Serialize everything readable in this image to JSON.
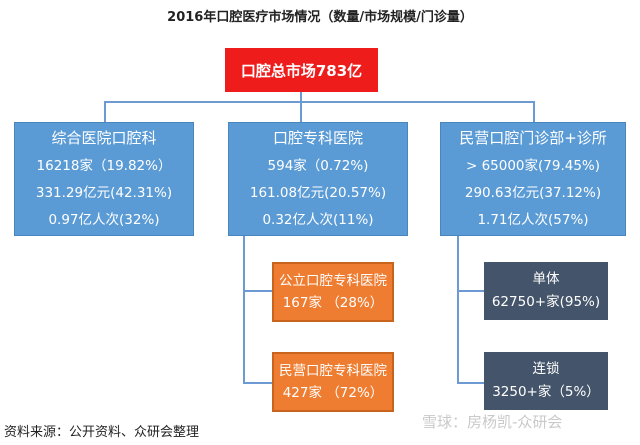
{
  "title": "2016年口腔医疗市场情况（数量/市场规模/门诊量）",
  "root": {
    "label": "口腔总市场783亿"
  },
  "categories": [
    {
      "header": "综合医院口腔科",
      "lines": [
        "16218家（19.82%）",
        "331.29亿元(42.31%)",
        "0.97亿人次(32%)"
      ]
    },
    {
      "header": "口腔专科医院",
      "lines": [
        "594家（0.72%)",
        "161.08亿元(20.57%)",
        "0.32亿人次(11%)"
      ]
    },
    {
      "header": "民营口腔门诊部+诊所",
      "lines": [
        "> 65000家(79.45%)",
        "290.63亿元(37.12%)",
        "1.71亿人次(57%)"
      ]
    }
  ],
  "specialty_sub": [
    {
      "name": "公立口腔专科医院",
      "detail": "167家 （28%）"
    },
    {
      "name": "民营口腔专科医院",
      "detail": "427家 （72%）"
    }
  ],
  "private_sub": [
    {
      "name": "单体",
      "detail": "62750+家(95%)"
    },
    {
      "name": "连锁",
      "detail": "3250+家（5%）"
    }
  ],
  "source": "资料来源：公开资料、众研会整理",
  "watermark": "雪球：房杨凯-众研会",
  "colors": {
    "root": "#ef1c1c",
    "category": "#5b9bd5",
    "specialty_sub": "#ef7d31",
    "private_sub": "#44546a",
    "connector": "#6b9bd2"
  }
}
